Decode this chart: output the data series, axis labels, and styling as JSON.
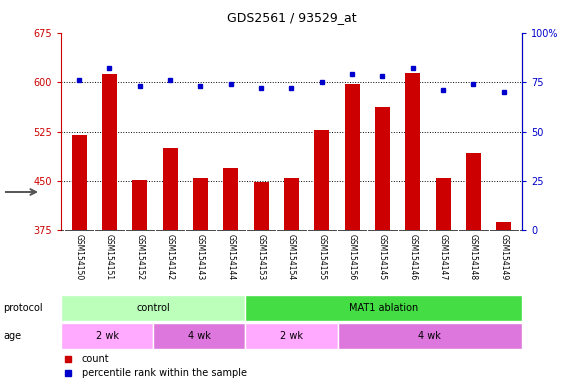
{
  "title": "GDS2561 / 93529_at",
  "samples": [
    "GSM154150",
    "GSM154151",
    "GSM154152",
    "GSM154142",
    "GSM154143",
    "GSM154144",
    "GSM154153",
    "GSM154154",
    "GSM154155",
    "GSM154156",
    "GSM154145",
    "GSM154146",
    "GSM154147",
    "GSM154148",
    "GSM154149"
  ],
  "bar_values": [
    520,
    612,
    452,
    500,
    455,
    470,
    449,
    455,
    527,
    597,
    562,
    614,
    455,
    493,
    387
  ],
  "dot_values": [
    76,
    82,
    73,
    76,
    73,
    74,
    72,
    72,
    75,
    79,
    78,
    82,
    71,
    74,
    70
  ],
  "bar_color": "#cc0000",
  "dot_color": "#0000cc",
  "ylim_left": [
    375,
    675
  ],
  "ylim_right": [
    0,
    100
  ],
  "yticks_left": [
    375,
    450,
    525,
    600,
    675
  ],
  "yticks_right": [
    0,
    25,
    50,
    75,
    100
  ],
  "grid_lines": [
    600,
    525,
    450
  ],
  "bg_color": "#ffffff",
  "protocol_groups": [
    {
      "label": "control",
      "start": 0,
      "end": 6,
      "color": "#bbffbb"
    },
    {
      "label": "MAT1 ablation",
      "start": 6,
      "end": 15,
      "color": "#44dd44"
    }
  ],
  "age_groups": [
    {
      "label": "2 wk",
      "start": 0,
      "end": 3,
      "color": "#ffaaff"
    },
    {
      "label": "4 wk",
      "start": 3,
      "end": 6,
      "color": "#dd77dd"
    },
    {
      "label": "2 wk",
      "start": 6,
      "end": 9,
      "color": "#ffaaff"
    },
    {
      "label": "4 wk",
      "start": 9,
      "end": 15,
      "color": "#dd77dd"
    }
  ],
  "legend_items": [
    {
      "label": "count",
      "color": "#cc0000"
    },
    {
      "label": "percentile rank within the sample",
      "color": "#0000cc"
    }
  ],
  "protocol_label": "protocol",
  "age_label": "age",
  "tick_bg": "#c8c8c8"
}
